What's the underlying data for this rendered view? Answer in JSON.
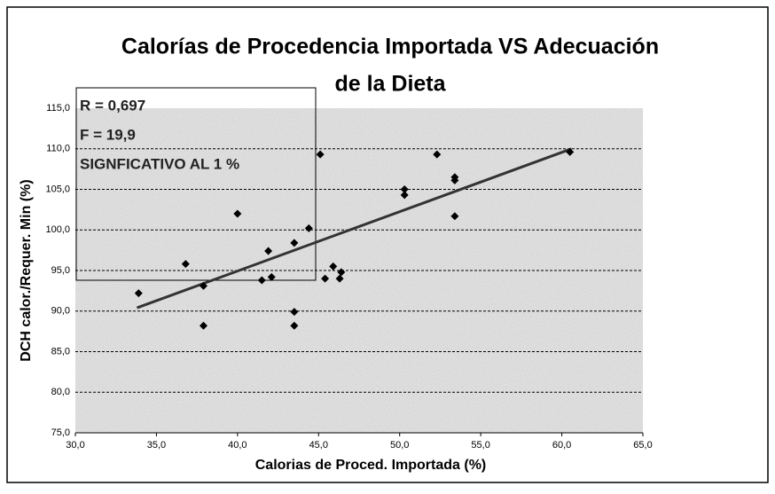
{
  "chart_data": {
    "type": "scatter",
    "title": [
      "Calorías de Procedencia Importada VS Adecuación",
      "de la Dieta"
    ],
    "xlabel": "Calorias de Proced. Importada (%)",
    "ylabel": "DCH calor./Requer. Min (%)",
    "annotations": [
      "R = 0,697",
      "F = 19,9",
      "SIGNFICATIVO AL 1 %"
    ],
    "xlim": [
      30,
      65
    ],
    "xticks": [
      {
        "value": 30,
        "label": "30,0"
      },
      {
        "value": 35,
        "label": "35,0"
      },
      {
        "value": 40,
        "label": "40,0"
      },
      {
        "value": 45,
        "label": "45,0"
      },
      {
        "value": 50,
        "label": "50,0"
      },
      {
        "value": 55,
        "label": "55,0"
      },
      {
        "value": 60,
        "label": "60,0"
      },
      {
        "value": 65,
        "label": "65,0"
      }
    ],
    "ylim": [
      75,
      115
    ],
    "yticks": [
      {
        "value": 75,
        "label": "75,0"
      },
      {
        "value": 80,
        "label": "80,0"
      },
      {
        "value": 85,
        "label": "85,0"
      },
      {
        "value": 90,
        "label": "90,0"
      },
      {
        "value": 95,
        "label": "95,0"
      },
      {
        "value": 100,
        "label": "100,0"
      },
      {
        "value": 105,
        "label": "105,0"
      },
      {
        "value": 110,
        "label": "110,0"
      },
      {
        "value": 115,
        "label": "115,0"
      }
    ],
    "grid": true,
    "color": "#000000",
    "x": [
      33.9,
      36.8,
      37.9,
      37.9,
      40.0,
      41.9,
      42.1,
      41.5,
      43.5,
      43.5,
      43.5,
      44.4,
      45.1,
      45.4,
      45.9,
      46.3,
      46.4,
      50.3,
      50.3,
      52.3,
      53.4,
      53.4,
      53.4,
      60.5
    ],
    "values": [
      92.2,
      95.8,
      93.1,
      88.2,
      102.0,
      97.4,
      94.2,
      93.8,
      98.4,
      89.9,
      88.2,
      100.2,
      109.3,
      94.0,
      95.5,
      94.0,
      94.8,
      105.0,
      104.3,
      109.3,
      106.5,
      106.1,
      101.7,
      109.6
    ],
    "trendline": {
      "color": "#333333",
      "x": [
        33.8,
        60.6
      ],
      "values": [
        90.4,
        110.0
      ]
    }
  }
}
